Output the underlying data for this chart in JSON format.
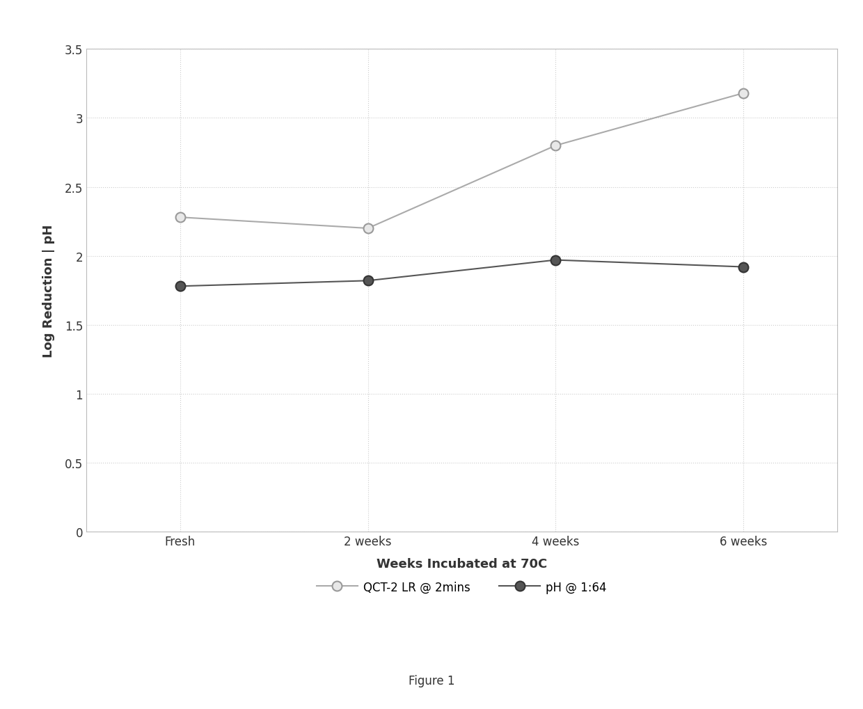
{
  "x_labels": [
    "Fresh",
    "2 weeks",
    "4 weeks",
    "6 weeks"
  ],
  "x_positions": [
    0,
    1,
    2,
    3
  ],
  "series1_label": "QCT-2 LR @ 2mins",
  "series1_y": [
    2.28,
    2.2,
    2.8,
    3.18
  ],
  "series1_color": "#aaaaaa",
  "series1_marker": "o",
  "series1_markersize": 10,
  "series1_markerfacecolor": "#e8e8e8",
  "series1_markeredgecolor": "#999999",
  "series2_label": "pH @ 1:64",
  "series2_y": [
    1.78,
    1.82,
    1.97,
    1.92
  ],
  "series2_color": "#555555",
  "series2_marker": "o",
  "series2_markersize": 10,
  "series2_markerfacecolor": "#555555",
  "series2_markeredgecolor": "#333333",
  "ylabel": "Log Reduction | pH",
  "xlabel": "Weeks Incubated at 70C",
  "figure_caption": "Figure 1",
  "ylim": [
    0,
    3.5
  ],
  "yticks": [
    0,
    0.5,
    1.0,
    1.5,
    2.0,
    2.5,
    3.0,
    3.5
  ],
  "ytick_labels": [
    "0",
    "0.5",
    "1",
    "1.5",
    "2",
    "2.5",
    "3",
    "3.5"
  ],
  "grid_color": "#cccccc",
  "bg_color": "#ffffff",
  "plot_bg_color": "#ffffff",
  "linewidth": 1.5,
  "axis_label_fontsize": 13,
  "tick_fontsize": 12,
  "legend_fontsize": 12,
  "caption_fontsize": 12
}
